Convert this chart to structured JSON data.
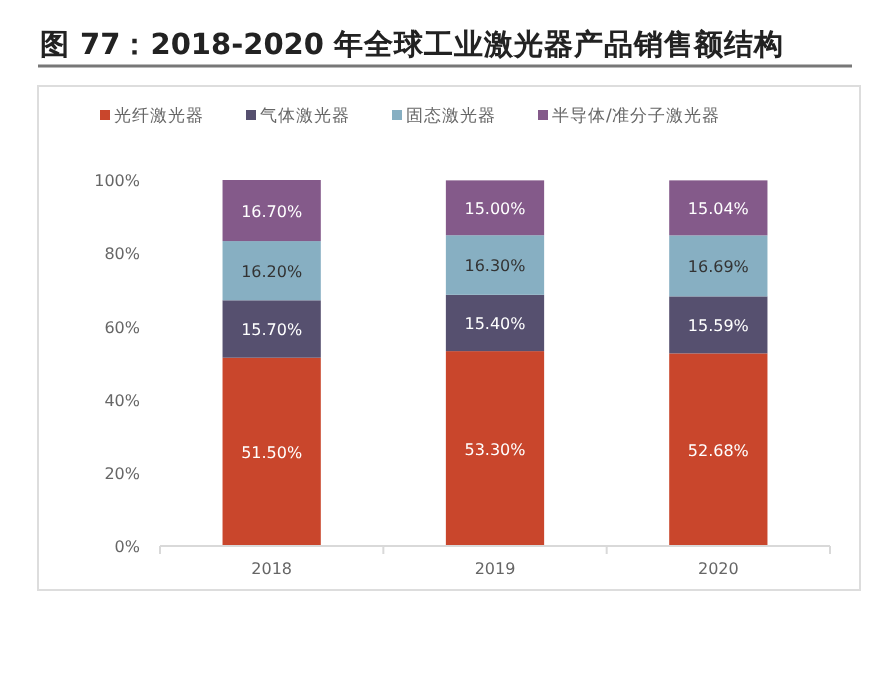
{
  "chart_data": {
    "type": "bar",
    "stacked": true,
    "title": "图 77：2018-2020 年全球工业激光器产品销售额结构",
    "categories": [
      "2018",
      "2019",
      "2020"
    ],
    "series": [
      {
        "name": "光纤激光器",
        "color": "#c9462c",
        "values": [
          51.5,
          53.3,
          52.68
        ],
        "value_labels": [
          "51.50%",
          "53.30%",
          "52.68%"
        ]
      },
      {
        "name": "气体激光器",
        "color": "#56506f",
        "values": [
          15.7,
          15.4,
          15.59
        ],
        "value_labels": [
          "15.70%",
          "15.40%",
          "15.59%"
        ]
      },
      {
        "name": "固态激光器",
        "color": "#87afc2",
        "values": [
          16.2,
          16.3,
          16.69
        ],
        "value_labels": [
          "16.20%",
          "16.30%",
          "16.69%"
        ]
      },
      {
        "name": "半导体/准分子激光器",
        "color": "#845a8a",
        "values": [
          16.7,
          15.0,
          15.04
        ],
        "value_labels": [
          "16.70%",
          "15.00%",
          "15.04%"
        ]
      }
    ],
    "ylim": [
      0,
      100.1
    ],
    "yticks": [
      {
        "value": 0,
        "label": "0%"
      },
      {
        "value": 20,
        "label": "20%"
      },
      {
        "value": 40,
        "label": "40%"
      },
      {
        "value": 60,
        "label": "60%"
      },
      {
        "value": 80,
        "label": "80%"
      },
      {
        "value": 100,
        "label": "100%"
      }
    ],
    "legend": "top"
  }
}
